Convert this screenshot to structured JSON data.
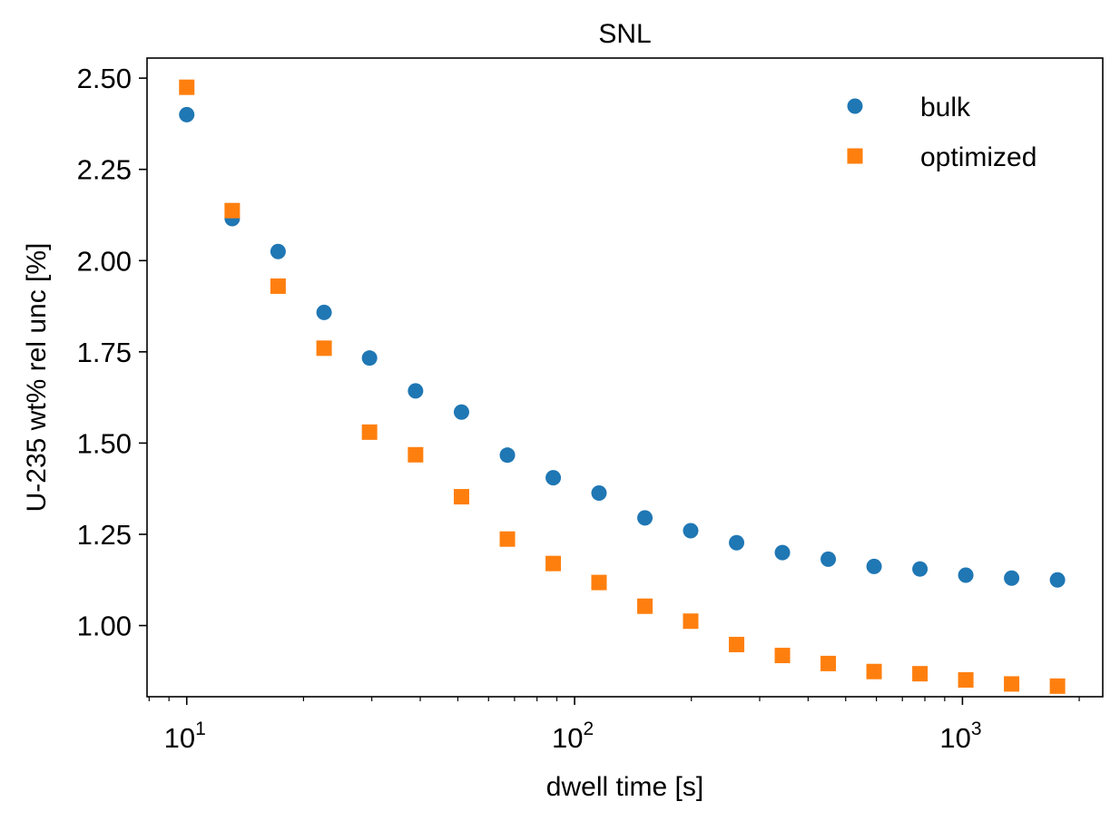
{
  "chart_data": {
    "type": "scatter",
    "title": "SNL",
    "xlabel": "dwell time [s]",
    "ylabel": "U-235 wt% rel unc [%]",
    "xscale": "log",
    "xlim": [
      7.9,
      2300
    ],
    "ylim": [
      0.805,
      2.555
    ],
    "x_ticks": [
      {
        "base": "10",
        "exp": "1",
        "value": 10
      },
      {
        "base": "10",
        "exp": "2",
        "value": 100
      },
      {
        "base": "10",
        "exp": "3",
        "value": 1000
      }
    ],
    "y_ticks": [
      {
        "label": "1.00",
        "value": 1.0
      },
      {
        "label": "1.25",
        "value": 1.25
      },
      {
        "label": "1.50",
        "value": 1.5
      },
      {
        "label": "1.75",
        "value": 1.75
      },
      {
        "label": "2.00",
        "value": 2.0
      },
      {
        "label": "2.25",
        "value": 2.25
      },
      {
        "label": "2.50",
        "value": 2.5
      }
    ],
    "grid": false,
    "legend_position": "top-right",
    "x": [
      10,
      13.1,
      17.2,
      22.6,
      29.6,
      38.9,
      51.1,
      67.1,
      88.1,
      115.6,
      151.8,
      199.2,
      261.6,
      343.4,
      450.8,
      591.8,
      777,
      1020,
      1339,
      1758
    ],
    "series": [
      {
        "name": "bulk",
        "marker": "circle",
        "color": "#1f77b4",
        "values": [
          2.4,
          2.115,
          2.025,
          1.858,
          1.733,
          1.643,
          1.585,
          1.467,
          1.405,
          1.363,
          1.295,
          1.26,
          1.227,
          1.2,
          1.182,
          1.162,
          1.155,
          1.138,
          1.13,
          1.125
        ]
      },
      {
        "name": "optimized",
        "marker": "square",
        "color": "#ff7f0e",
        "values": [
          2.475,
          2.137,
          1.93,
          1.76,
          1.53,
          1.468,
          1.353,
          1.237,
          1.17,
          1.118,
          1.053,
          1.012,
          0.948,
          0.918,
          0.896,
          0.874,
          0.868,
          0.851,
          0.84,
          0.834
        ]
      }
    ]
  }
}
